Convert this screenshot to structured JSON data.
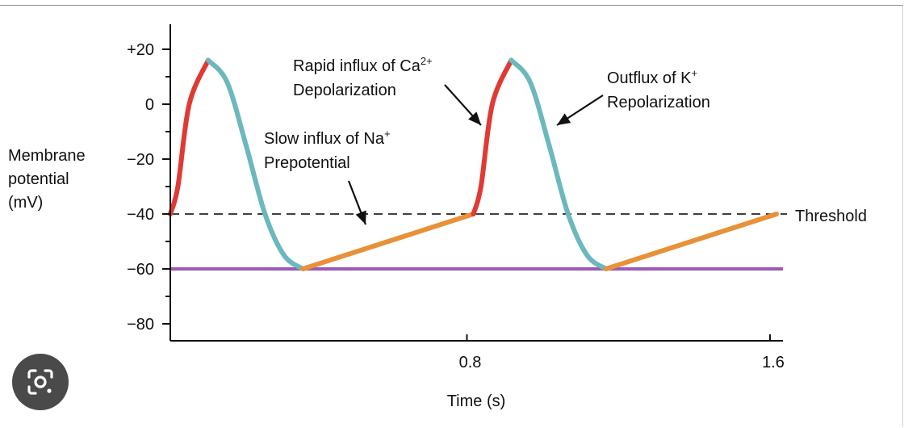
{
  "chart_data": {
    "type": "line",
    "x": [
      0,
      0.04,
      0.1,
      0.16,
      0.22,
      0.28,
      0.35,
      0.8,
      0.84,
      0.9,
      0.96,
      1.02,
      1.08,
      1.15,
      1.6
    ],
    "y": [
      -40,
      -5,
      16,
      5,
      -25,
      -50,
      -60,
      -40,
      -5,
      16,
      5,
      -25,
      -50,
      -60,
      -40
    ],
    "segments": [
      {
        "name": "Rapid influx of Ca2+ Depolarization",
        "color": "#e03a35",
        "x": [
          0,
          0.02,
          0.05,
          0.1
        ],
        "y": [
          -40,
          -30,
          0,
          16
        ]
      },
      {
        "name": "Outflux of K+ Repolarization",
        "color": "#6bb8bd",
        "x": [
          0.1,
          0.15,
          0.2,
          0.25,
          0.3,
          0.35
        ],
        "y": [
          16,
          8,
          -15,
          -40,
          -55,
          -60
        ]
      },
      {
        "name": "Slow influx of Na+ Prepotential",
        "color": "#e8913a",
        "x": [
          0.35,
          0.8
        ],
        "y": [
          -60,
          -40
        ]
      },
      {
        "name": "Rapid influx of Ca2+ Depolarization",
        "color": "#e03a35",
        "x": [
          0.8,
          0.82,
          0.85,
          0.9
        ],
        "y": [
          -40,
          -30,
          0,
          16
        ]
      },
      {
        "name": "Outflux of K+ Repolarization",
        "color": "#6bb8bd",
        "x": [
          0.9,
          0.95,
          1.0,
          1.05,
          1.1,
          1.15
        ],
        "y": [
          16,
          8,
          -15,
          -40,
          -55,
          -60
        ]
      },
      {
        "name": "Slow influx of Na+ Prepotential",
        "color": "#e8913a",
        "x": [
          1.15,
          1.6
        ],
        "y": [
          -60,
          -40
        ]
      }
    ],
    "reference_lines": [
      {
        "label": "Threshold",
        "y": -40,
        "style": "dashed",
        "color": "#000000"
      },
      {
        "label": "",
        "y": -60,
        "style": "solid",
        "color": "#9b59b6"
      }
    ],
    "xlim": [
      0,
      1.6
    ],
    "ylim": [
      -85,
      30
    ],
    "x_ticks": [
      0.8,
      1.6
    ],
    "x_tick_labels": [
      "0.8",
      "1.6"
    ],
    "y_ticks": [
      20,
      0,
      -20,
      -40,
      -60,
      -80
    ],
    "y_tick_labels": [
      "+20",
      "0",
      "−20",
      "−40",
      "−60",
      "−80"
    ],
    "xlabel": "Time (s)",
    "ylabel_lines": [
      "Membrane",
      "potential",
      "(mV)"
    ],
    "threshold_label": "Threshold",
    "annotations": {
      "depol": {
        "line1_text": "Rapid influx of Ca",
        "line1_sup": "2+",
        "line2": "Depolarization"
      },
      "repol": {
        "line1_text": "Outflux of K",
        "line1_sup": "+",
        "line2": "Repolarization"
      },
      "prepot": {
        "line1_text": "Slow influx of Na",
        "line1_sup": "+",
        "line2": "Prepotential"
      }
    }
  },
  "lens_button": {
    "icon": "google-lens-icon"
  }
}
